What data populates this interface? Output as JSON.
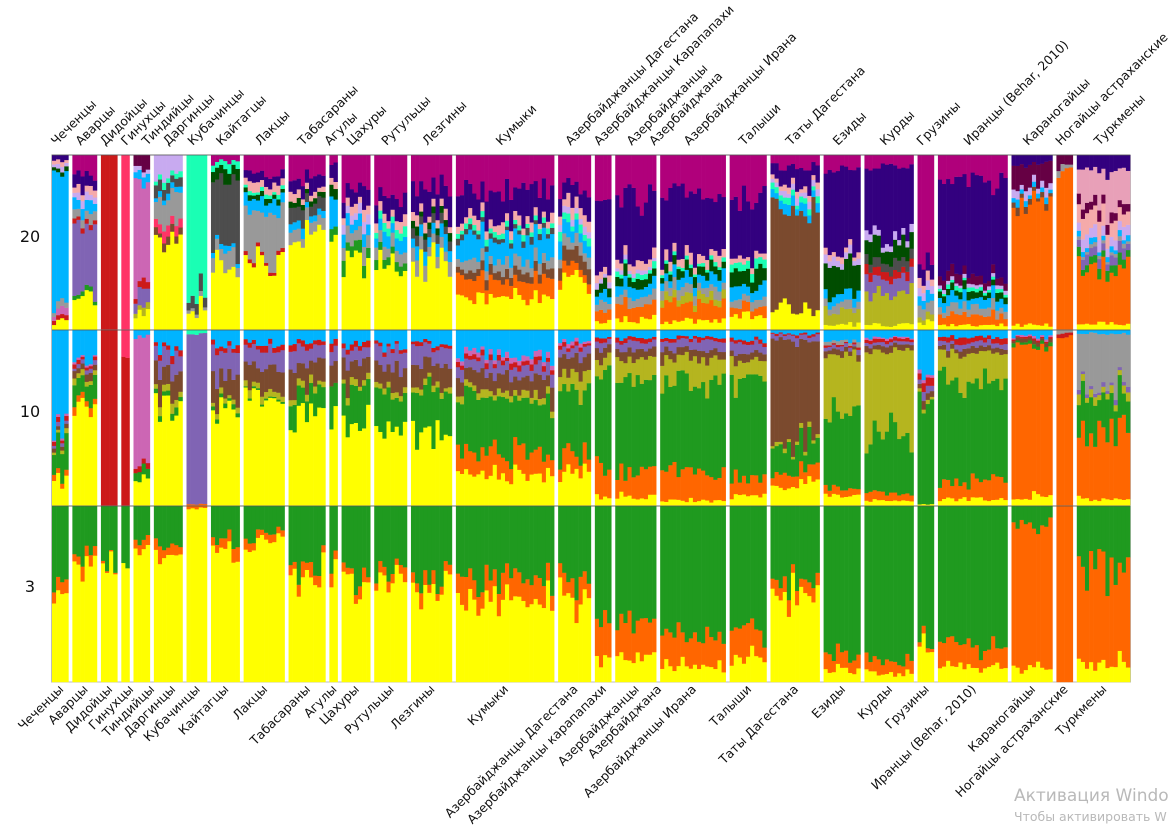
{
  "chart_data": {
    "type": "structure-stacked-bar",
    "title": "",
    "rows": [
      {
        "k": "20",
        "label": "20"
      },
      {
        "k": "10",
        "label": "10"
      },
      {
        "k": "3",
        "label": "3"
      }
    ],
    "populations": [
      {
        "name": "Чеченцы",
        "n": 4
      },
      {
        "name": "Аварцы",
        "n": 6
      },
      {
        "name": "Дидойцы",
        "n": 4
      },
      {
        "name": "Гинухцы",
        "n": 2
      },
      {
        "name": "Тиндийцы",
        "n": 4
      },
      {
        "name": "Даргинцы",
        "n": 7
      },
      {
        "name": "Кубачинцы",
        "n": 5
      },
      {
        "name": "Кайтагцы",
        "n": 7
      },
      {
        "name": "Лакцы",
        "n": 10
      },
      {
        "name": "Табасараны",
        "n": 9
      },
      {
        "name": "Агулы",
        "n": 2
      },
      {
        "name": "Цахуры",
        "n": 7
      },
      {
        "name": "Рутульцы",
        "n": 8
      },
      {
        "name": "Лезгины",
        "n": 10
      },
      {
        "name": "Кумыки",
        "n": 24
      },
      {
        "name": "Азербайджанцы Дагестана",
        "n": 8
      },
      {
        "name": "Азербайджанцы Карапапахи",
        "n": 4
      },
      {
        "name": "Азербайджанцы",
        "n": 10
      },
      {
        "name": "Азербайджана",
        "n": 0
      },
      {
        "name": "Азербайджанцы Ирана",
        "n": 16
      },
      {
        "name": "Талыши",
        "n": 9
      },
      {
        "name": "Таты Дагестана",
        "n": 12
      },
      {
        "name": "Езиды",
        "n": 9
      },
      {
        "name": "Курды",
        "n": 12
      },
      {
        "name": "Грузины",
        "n": 4
      },
      {
        "name": "Иранцы (Behar, 2010)",
        "n": 17
      },
      {
        "name": "Караногайцы",
        "n": 10
      },
      {
        "name": "Ногайцы астраханские",
        "n": 4
      },
      {
        "name": "Туркмены",
        "n": 13
      }
    ],
    "bottom_labels": [
      "Чеченцы",
      "Аварцы",
      "Дидойцы",
      "Гинухцы",
      "Тиндийцы",
      "Даргинцы",
      "Кубачинцы",
      "Кайтагцы",
      "Лакцы",
      "Табасараны",
      "Агулы",
      "Цахуры",
      "Рутульцы",
      "Лезгины",
      "Кумыки",
      "Азербайджанцы Дагестана",
      "Азербайджанцы карапапахи",
      "Азербайджанцы",
      "Азербайджана",
      "Азербайджанцы Ирана",
      "Талыши",
      "Таты Дагестана",
      "Езиды",
      "Курды",
      "Грузины",
      "Иранцы (Behar, 2010)",
      "Караногайцы",
      "Ногайцы астраханские",
      "Туркмены"
    ],
    "components": {
      "yellow": "#ffff00",
      "green": "#1f9a1f",
      "orange": "#ff6600",
      "blue": "#00b4ff",
      "olive": "#b5b51f",
      "brown": "#7b4a2e",
      "purple": "#8064b4",
      "red": "#cc1a1a",
      "pink": "#cc66b4",
      "gray": "#999999",
      "magenta": "#b0007b",
      "indigo": "#33007f",
      "darkgreen": "#004d00",
      "lilac": "#c8aaf0",
      "rose": "#ff3366",
      "mint": "#1affb4",
      "dark": "#4d4d4d",
      "salmon": "#f5aaaa",
      "maroon": "#660044",
      "lightpink": "#e8a0b8"
    },
    "k3": [
      {
        "yellow": 0.55,
        "orange": 0.08,
        "green": 0.37
      },
      {
        "yellow": 0.68,
        "orange": 0.06,
        "green": 0.26
      },
      {
        "yellow": 0.68,
        "orange": 0.01,
        "green": 0.31
      },
      {
        "yellow": 0.68,
        "orange": 0.0,
        "green": 0.32
      },
      {
        "yellow": 0.75,
        "orange": 0.05,
        "green": 0.2
      },
      {
        "yellow": 0.73,
        "orange": 0.06,
        "green": 0.21
      },
      {
        "yellow": 0.99,
        "orange": 0.01,
        "green": 0.0
      },
      {
        "yellow": 0.74,
        "orange": 0.06,
        "green": 0.2
      },
      {
        "yellow": 0.8,
        "orange": 0.04,
        "green": 0.16
      },
      {
        "yellow": 0.62,
        "orange": 0.06,
        "green": 0.32
      },
      {
        "yellow": 0.6,
        "orange": 0.05,
        "green": 0.35
      },
      {
        "yellow": 0.58,
        "orange": 0.05,
        "green": 0.37
      },
      {
        "yellow": 0.6,
        "orange": 0.05,
        "green": 0.35
      },
      {
        "yellow": 0.55,
        "orange": 0.06,
        "green": 0.39
      },
      {
        "yellow": 0.45,
        "orange": 0.12,
        "green": 0.43
      },
      {
        "yellow": 0.48,
        "orange": 0.1,
        "green": 0.42
      },
      {
        "yellow": 0.12,
        "orange": 0.2,
        "green": 0.68
      },
      {
        "yellow": 0.14,
        "orange": 0.18,
        "green": 0.68
      },
      {
        "yellow": 0,
        "orange": 0,
        "green": 0
      },
      {
        "yellow": 0.09,
        "orange": 0.17,
        "green": 0.74
      },
      {
        "yellow": 0.13,
        "orange": 0.15,
        "green": 0.72
      },
      {
        "yellow": 0.52,
        "orange": 0.07,
        "green": 0.41
      },
      {
        "yellow": 0.07,
        "orange": 0.09,
        "green": 0.84
      },
      {
        "yellow": 0.05,
        "orange": 0.07,
        "green": 0.88
      },
      {
        "yellow": 0.2,
        "orange": 0.03,
        "green": 0.77
      },
      {
        "yellow": 0.09,
        "orange": 0.12,
        "green": 0.79
      },
      {
        "yellow": 0.08,
        "orange": 0.82,
        "green": 0.1
      },
      {
        "yellow": 0.0,
        "orange": 1.0,
        "green": 0.0
      },
      {
        "yellow": 0.1,
        "orange": 0.55,
        "green": 0.35
      }
    ],
    "k10": [
      {
        "yellow": 0.15,
        "orange": 0.03,
        "green": 0.15,
        "blue": 0.58,
        "olive": 0.02,
        "brown": 0.02,
        "purple": 0.02,
        "red": 0.02,
        "pink": 0.01
      },
      {
        "yellow": 0.55,
        "orange": 0.04,
        "green": 0.12,
        "blue": 0.17,
        "olive": 0.03,
        "brown": 0.04,
        "purple": 0.02,
        "red": 0.02,
        "pink": 0.01
      },
      {
        "red": 1.0
      },
      {
        "red": 0.85,
        "rose": 0.15
      },
      {
        "yellow": 0.18,
        "pink": 0.68,
        "green": 0.06,
        "red": 0.04,
        "blue": 0.04
      },
      {
        "yellow": 0.58,
        "brown": 0.12,
        "purple": 0.1,
        "blue": 0.1,
        "olive": 0.04,
        "red": 0.03,
        "green": 0.03
      },
      {
        "purple": 0.97,
        "mint": 0.02,
        "orange": 0.01
      },
      {
        "yellow": 0.56,
        "brown": 0.14,
        "purple": 0.14,
        "blue": 0.08,
        "olive": 0.03,
        "red": 0.03,
        "green": 0.02
      },
      {
        "yellow": 0.62,
        "brown": 0.12,
        "purple": 0.1,
        "blue": 0.08,
        "olive": 0.04,
        "red": 0.03,
        "green": 0.01
      },
      {
        "yellow": 0.52,
        "green": 0.12,
        "brown": 0.12,
        "purple": 0.1,
        "blue": 0.07,
        "olive": 0.04,
        "red": 0.03
      },
      {
        "yellow": 0.5,
        "green": 0.2,
        "brown": 0.1,
        "purple": 0.08,
        "blue": 0.08,
        "red": 0.04
      },
      {
        "yellow": 0.48,
        "green": 0.18,
        "brown": 0.12,
        "purple": 0.08,
        "blue": 0.08,
        "olive": 0.03,
        "red": 0.03
      },
      {
        "yellow": 0.45,
        "green": 0.2,
        "brown": 0.12,
        "purple": 0.1,
        "blue": 0.08,
        "olive": 0.03,
        "red": 0.02
      },
      {
        "yellow": 0.4,
        "green": 0.24,
        "brown": 0.13,
        "purple": 0.1,
        "blue": 0.08,
        "olive": 0.03,
        "red": 0.02
      },
      {
        "yellow": 0.17,
        "orange": 0.12,
        "green": 0.3,
        "blue": 0.15,
        "olive": 0.04,
        "brown": 0.1,
        "purple": 0.06,
        "red": 0.03,
        "pink": 0.03
      },
      {
        "yellow": 0.2,
        "orange": 0.1,
        "green": 0.35,
        "blue": 0.06,
        "olive": 0.1,
        "brown": 0.1,
        "purple": 0.05,
        "red": 0.02,
        "pink": 0.02
      },
      {
        "yellow": 0.05,
        "orange": 0.15,
        "green": 0.55,
        "olive": 0.1,
        "brown": 0.05,
        "purple": 0.04,
        "blue": 0.04,
        "red": 0.02
      },
      {
        "yellow": 0.05,
        "orange": 0.13,
        "green": 0.55,
        "olive": 0.12,
        "brown": 0.05,
        "purple": 0.04,
        "blue": 0.04,
        "red": 0.02
      },
      {},
      {
        "yellow": 0.03,
        "orange": 0.17,
        "green": 0.52,
        "olive": 0.12,
        "brown": 0.05,
        "purple": 0.05,
        "blue": 0.04,
        "red": 0.02
      },
      {
        "yellow": 0.06,
        "orange": 0.1,
        "green": 0.54,
        "olive": 0.12,
        "brown": 0.05,
        "purple": 0.05,
        "blue": 0.06,
        "red": 0.02
      },
      {
        "yellow": 0.12,
        "orange": 0.07,
        "green": 0.15,
        "brown": 0.58,
        "purple": 0.03,
        "olive": 0.02,
        "blue": 0.02,
        "red": 0.01
      },
      {
        "yellow": 0.06,
        "orange": 0.04,
        "green": 0.46,
        "olive": 0.3,
        "blue": 0.06,
        "brown": 0.03,
        "purple": 0.02,
        "red": 0.01,
        "gray": 0.02
      },
      {
        "yellow": 0.03,
        "orange": 0.04,
        "green": 0.34,
        "olive": 0.47,
        "blue": 0.04,
        "brown": 0.03,
        "purple": 0.02,
        "red": 0.02,
        "pink": 0.01
      },
      {
        "yellow": 0.01,
        "green": 0.62,
        "blue": 0.22,
        "red": 0.04,
        "purple": 0.04,
        "brown": 0.03,
        "pink": 0.02,
        "olive": 0.02
      },
      {
        "yellow": 0.04,
        "orange": 0.1,
        "green": 0.57,
        "olive": 0.16,
        "blue": 0.04,
        "brown": 0.03,
        "purple": 0.03,
        "red": 0.03
      },
      {
        "yellow": 0.06,
        "orange": 0.84,
        "green": 0.02,
        "blue": 0.04,
        "brown": 0.02,
        "pink": 0.01,
        "red": 0.01
      },
      {
        "orange": 0.96,
        "gray": 0.02,
        "red": 0.02
      },
      {
        "yellow": 0.04,
        "orange": 0.4,
        "green": 0.2,
        "gray": 0.28,
        "olive": 0.04,
        "blue": 0.02,
        "purple": 0.02
      }
    ],
    "k20": [
      {
        "blue": 0.78,
        "yellow": 0.05,
        "gray": 0.03,
        "pink": 0.03,
        "red": 0.02,
        "indigo": 0.03,
        "darkgreen": 0.02,
        "salmon": 0.02,
        "lilac": 0.02
      },
      {
        "purple": 0.35,
        "yellow": 0.2,
        "magenta": 0.12,
        "indigo": 0.08,
        "blue": 0.06,
        "gray": 0.05,
        "lilac": 0.04,
        "salmon": 0.04,
        "red": 0.03,
        "green": 0.03
      },
      {
        "red": 1.0
      },
      {
        "rose": 1.0
      },
      {
        "pink": 0.62,
        "yellow": 0.1,
        "purple": 0.08,
        "maroon": 0.06,
        "blue": 0.04,
        "red": 0.04,
        "olive": 0.03,
        "lilac": 0.03
      },
      {
        "yellow": 0.5,
        "gray": 0.15,
        "lilac": 0.14,
        "dark": 0.06,
        "rose": 0.05,
        "brown": 0.04,
        "mint": 0.03,
        "blue": 0.03
      },
      {
        "mint": 0.8,
        "yellow": 0.12,
        "dark": 0.06,
        "gray": 0.02
      },
      {
        "dark": 0.4,
        "yellow": 0.35,
        "gray": 0.08,
        "darkgreen": 0.06,
        "mint": 0.04,
        "blue": 0.03,
        "magenta": 0.04
      },
      {
        "gray": 0.25,
        "yellow": 0.4,
        "magenta": 0.1,
        "blue": 0.08,
        "indigo": 0.05,
        "salmon": 0.05,
        "darkgreen": 0.03,
        "mint": 0.02,
        "red": 0.02
      },
      {
        "yellow": 0.55,
        "magenta": 0.12,
        "indigo": 0.08,
        "dark": 0.07,
        "gray": 0.06,
        "blue": 0.04,
        "darkgreen": 0.04,
        "salmon": 0.04
      },
      {
        "yellow": 0.5,
        "blue": 0.15,
        "indigo": 0.1,
        "darkgreen": 0.08,
        "green": 0.08,
        "salmon": 0.05,
        "magenta": 0.04
      },
      {
        "yellow": 0.4,
        "magenta": 0.2,
        "indigo": 0.1,
        "gray": 0.08,
        "blue": 0.06,
        "green": 0.06,
        "salmon": 0.05,
        "lilac": 0.05
      },
      {
        "yellow": 0.42,
        "magenta": 0.22,
        "indigo": 0.1,
        "gray": 0.06,
        "blue": 0.06,
        "salmon": 0.05,
        "green": 0.05,
        "mint": 0.04
      },
      {
        "yellow": 0.4,
        "magenta": 0.18,
        "indigo": 0.14,
        "gray": 0.07,
        "blue": 0.07,
        "dark": 0.05,
        "salmon": 0.05,
        "darkgreen": 0.04
      },
      {
        "yellow": 0.18,
        "orange": 0.1,
        "magenta": 0.2,
        "indigo": 0.18,
        "blue": 0.12,
        "gray": 0.06,
        "brown": 0.05,
        "salmon": 0.05,
        "dark": 0.03,
        "mint": 0.03
      },
      {
        "yellow": 0.28,
        "orange": 0.06,
        "magenta": 0.18,
        "indigo": 0.12,
        "blue": 0.08,
        "brown": 0.08,
        "gray": 0.06,
        "salmon": 0.06,
        "lilac": 0.04,
        "mint": 0.04
      },
      {
        "yellow": 0.06,
        "orange": 0.08,
        "magenta": 0.22,
        "indigo": 0.4,
        "blue": 0.06,
        "gray": 0.05,
        "darkgreen": 0.06,
        "salmon": 0.04,
        "lilac": 0.03
      },
      {
        "yellow": 0.06,
        "orange": 0.08,
        "magenta": 0.24,
        "indigo": 0.36,
        "blue": 0.06,
        "gray": 0.05,
        "darkgreen": 0.05,
        "salmon": 0.05,
        "mint": 0.03,
        "lilac": 0.02
      },
      {},
      {
        "yellow": 0.05,
        "orange": 0.1,
        "magenta": 0.22,
        "indigo": 0.36,
        "blue": 0.06,
        "gray": 0.05,
        "darkgreen": 0.05,
        "salmon": 0.05,
        "olive": 0.04,
        "mint": 0.02
      },
      {
        "yellow": 0.08,
        "orange": 0.05,
        "magenta": 0.26,
        "indigo": 0.32,
        "blue": 0.07,
        "darkgreen": 0.1,
        "gray": 0.05,
        "mint": 0.04,
        "salmon": 0.03
      },
      {
        "brown": 0.58,
        "yellow": 0.12,
        "indigo": 0.1,
        "magenta": 0.06,
        "blue": 0.05,
        "lilac": 0.03,
        "mint": 0.03,
        "salmon": 0.03
      },
      {
        "indigo": 0.45,
        "darkgreen": 0.18,
        "magenta": 0.08,
        "olive": 0.08,
        "blue": 0.06,
        "gray": 0.05,
        "lilac": 0.04,
        "yellow": 0.03,
        "salmon": 0.03
      },
      {
        "indigo": 0.42,
        "olive": 0.18,
        "darkgreen": 0.1,
        "purple": 0.08,
        "magenta": 0.06,
        "red": 0.04,
        "dark": 0.05,
        "lilac": 0.04,
        "yellow": 0.03
      },
      {
        "magenta": 0.62,
        "indigo": 0.1,
        "gray": 0.06,
        "blue": 0.05,
        "salmon": 0.05,
        "lilac": 0.04,
        "olive": 0.04,
        "yellow": 0.04
      },
      {
        "indigo": 0.52,
        "magenta": 0.16,
        "orange": 0.06,
        "gray": 0.05,
        "blue": 0.05,
        "maroon": 0.05,
        "darkgreen": 0.04,
        "yellow": 0.03,
        "mint": 0.02,
        "lilac": 0.02
      },
      {
        "orange": 0.7,
        "maroon": 0.12,
        "indigo": 0.05,
        "lilac": 0.04,
        "brown": 0.03,
        "yellow": 0.03,
        "blue": 0.03
      },
      {
        "orange": 0.92,
        "maroon": 0.05,
        "gray": 0.03
      },
      {
        "orange": 0.3,
        "lightpink": 0.2,
        "salmon": 0.1,
        "indigo": 0.1,
        "lilac": 0.06,
        "purple": 0.05,
        "green": 0.05,
        "maroon": 0.05,
        "yellow": 0.04,
        "blue": 0.03,
        "gray": 0.02
      }
    ]
  },
  "watermark": {
    "line1": "Активация Windo",
    "line2": "Чтобы активировать W"
  }
}
